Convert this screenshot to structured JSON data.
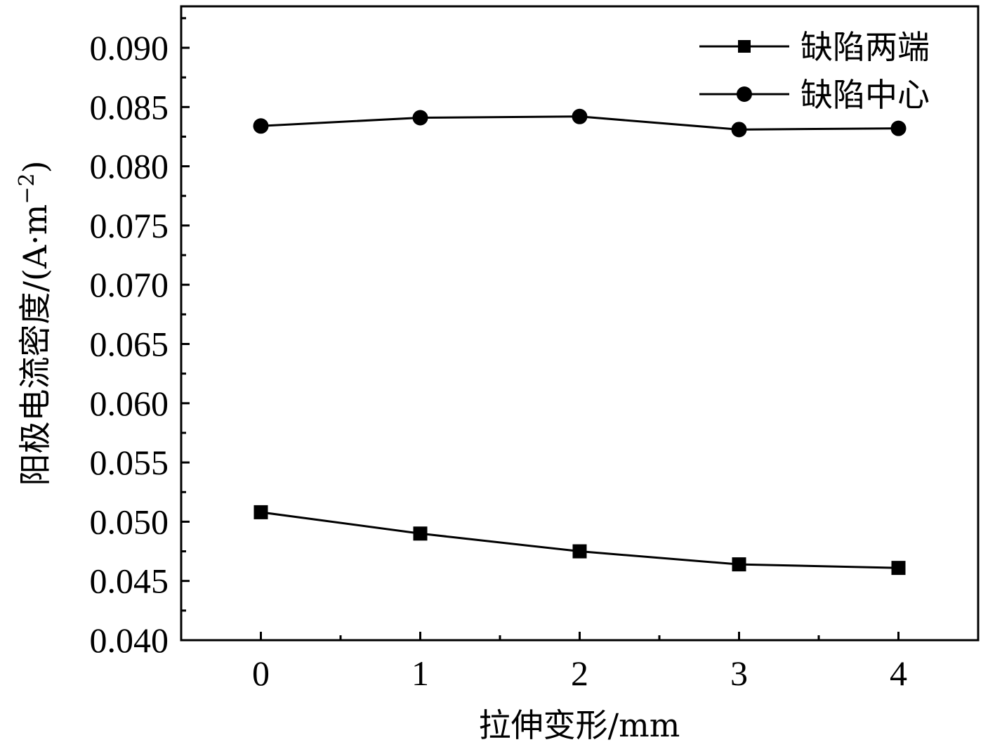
{
  "chart_data": {
    "type": "line",
    "xlabel": "拉伸变形/mm",
    "ylabel": "阳极电流密度/(A·m",
    "ylabel_sup": "−2",
    "ylabel_close": ")",
    "x": [
      0,
      1,
      2,
      3,
      4
    ],
    "x_ticks": [
      "0",
      "1",
      "2",
      "3",
      "4"
    ],
    "xlim": [
      -0.5,
      4.5
    ],
    "ylim": [
      0.04,
      0.0935
    ],
    "y_ticks": [
      "0.040",
      "0.045",
      "0.050",
      "0.055",
      "0.060",
      "0.065",
      "0.070",
      "0.075",
      "0.080",
      "0.085",
      "0.090"
    ],
    "legend_position": "top-right",
    "grid": false,
    "series": [
      {
        "name": "缺陷两端",
        "marker": "square",
        "color": "#000000",
        "values": [
          0.0508,
          0.049,
          0.0475,
          0.0464,
          0.0461
        ]
      },
      {
        "name": "缺陷中心",
        "marker": "circle",
        "color": "#000000",
        "values": [
          0.0834,
          0.0841,
          0.0842,
          0.0831,
          0.0832
        ]
      }
    ]
  }
}
